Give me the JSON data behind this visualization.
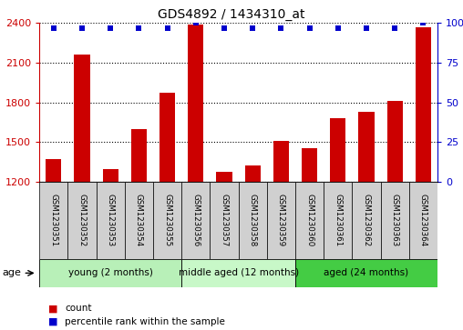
{
  "title": "GDS4892 / 1434310_at",
  "samples": [
    "GSM1230351",
    "GSM1230352",
    "GSM1230353",
    "GSM1230354",
    "GSM1230355",
    "GSM1230356",
    "GSM1230357",
    "GSM1230358",
    "GSM1230359",
    "GSM1230360",
    "GSM1230361",
    "GSM1230362",
    "GSM1230363",
    "GSM1230364"
  ],
  "counts": [
    1370,
    2165,
    1295,
    1600,
    1870,
    2390,
    1270,
    1320,
    1510,
    1455,
    1680,
    1730,
    1810,
    2370
  ],
  "percentile_ranks": [
    97,
    97,
    97,
    97,
    97,
    100,
    97,
    97,
    97,
    97,
    97,
    97,
    97,
    100
  ],
  "ylim_left": [
    1200,
    2400
  ],
  "ylim_right": [
    0,
    100
  ],
  "yticks_left": [
    1200,
    1500,
    1800,
    2100,
    2400
  ],
  "yticks_right": [
    0,
    25,
    50,
    75,
    100
  ],
  "bar_color": "#cc0000",
  "dot_color": "#0000cc",
  "groups": [
    {
      "label": "young (2 months)",
      "start": 0,
      "end": 4,
      "color": "#b8f0b8"
    },
    {
      "label": "middle aged (12 months)",
      "start": 5,
      "end": 8,
      "color": "#c8f8c8"
    },
    {
      "label": "aged (24 months)",
      "start": 9,
      "end": 13,
      "color": "#44cc44"
    }
  ],
  "bg_color": "#ffffff",
  "bar_width": 0.55,
  "title_fontsize": 10,
  "axis_label_color_left": "#cc0000",
  "axis_label_color_right": "#0000cc",
  "label_box_color": "#d0d0d0",
  "legend_square_size": 8
}
